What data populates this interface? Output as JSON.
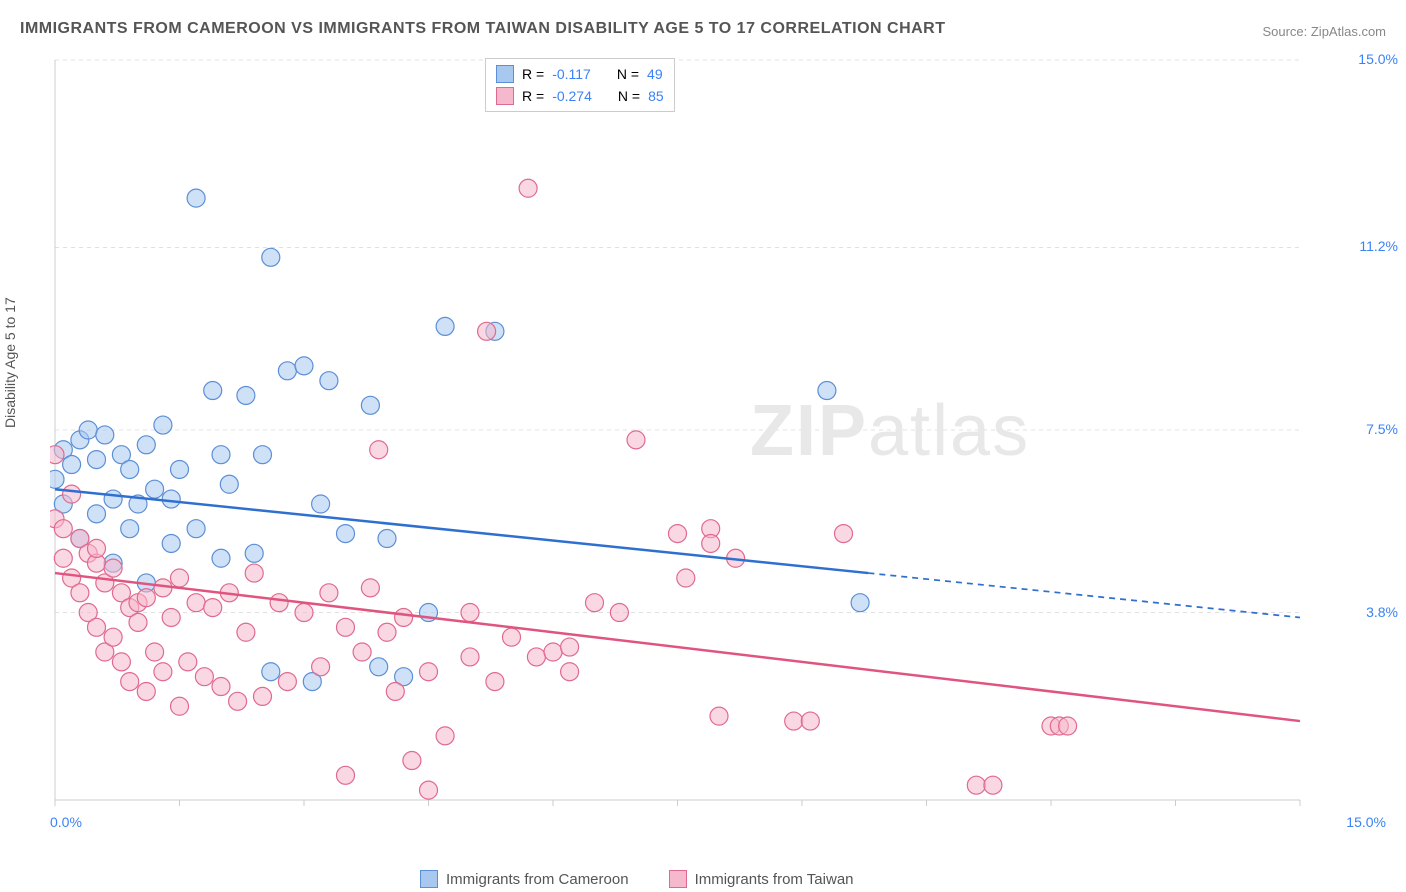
{
  "title": "IMMIGRANTS FROM CAMEROON VS IMMIGRANTS FROM TAIWAN DISABILITY AGE 5 TO 17 CORRELATION CHART",
  "source": "Source: ZipAtlas.com",
  "y_axis_label": "Disability Age 5 to 17",
  "watermark_zip": "ZIP",
  "watermark_atlas": "atlas",
  "chart": {
    "type": "scatter",
    "xlim": [
      0,
      15
    ],
    "ylim": [
      0,
      15
    ],
    "grid_color": "#e0e0e0",
    "axis_color": "#cccccc",
    "background_color": "#ffffff",
    "y_ticks": [
      {
        "value": 15.0,
        "label": "15.0%"
      },
      {
        "value": 11.2,
        "label": "11.2%"
      },
      {
        "value": 7.5,
        "label": "7.5%"
      },
      {
        "value": 3.8,
        "label": "3.8%"
      }
    ],
    "x_tick_positions": [
      0,
      1.5,
      3.0,
      4.5,
      6.0,
      7.5,
      9.0,
      10.5,
      12.0,
      13.5,
      15.0
    ],
    "x_min_label": "0.0%",
    "x_max_label": "15.0%",
    "series": [
      {
        "name": "Immigrants from Cameroon",
        "color_fill": "#a8c8f0",
        "color_stroke": "#5b8fd6",
        "marker_radius": 9,
        "marker_opacity": 0.55,
        "R": "-0.117",
        "N": "49",
        "regression": {
          "x1": 0.0,
          "y1": 6.3,
          "x2_solid": 9.8,
          "y2_solid": 4.6,
          "x2": 15.0,
          "y2": 3.7,
          "color": "#2f6fd0",
          "width": 2.5
        },
        "points": [
          [
            0.0,
            6.5
          ],
          [
            0.1,
            6.0
          ],
          [
            0.1,
            7.1
          ],
          [
            0.2,
            6.8
          ],
          [
            0.3,
            5.3
          ],
          [
            0.3,
            7.3
          ],
          [
            0.4,
            7.5
          ],
          [
            0.5,
            6.9
          ],
          [
            0.5,
            5.8
          ],
          [
            0.6,
            7.4
          ],
          [
            0.7,
            6.1
          ],
          [
            0.7,
            4.8
          ],
          [
            0.8,
            7.0
          ],
          [
            0.9,
            5.5
          ],
          [
            0.9,
            6.7
          ],
          [
            1.0,
            6.0
          ],
          [
            1.1,
            7.2
          ],
          [
            1.1,
            4.4
          ],
          [
            1.2,
            6.3
          ],
          [
            1.3,
            7.6
          ],
          [
            1.4,
            5.2
          ],
          [
            1.4,
            6.1
          ],
          [
            1.5,
            6.7
          ],
          [
            1.7,
            12.2
          ],
          [
            1.7,
            5.5
          ],
          [
            1.9,
            8.3
          ],
          [
            2.0,
            4.9
          ],
          [
            2.0,
            7.0
          ],
          [
            2.1,
            6.4
          ],
          [
            2.3,
            8.2
          ],
          [
            2.4,
            5.0
          ],
          [
            2.5,
            7.0
          ],
          [
            2.6,
            2.6
          ],
          [
            2.6,
            11.0
          ],
          [
            2.8,
            8.7
          ],
          [
            3.0,
            8.8
          ],
          [
            3.1,
            2.4
          ],
          [
            3.2,
            6.0
          ],
          [
            3.3,
            8.5
          ],
          [
            3.5,
            5.4
          ],
          [
            3.8,
            8.0
          ],
          [
            3.9,
            2.7
          ],
          [
            4.0,
            5.3
          ],
          [
            4.2,
            2.5
          ],
          [
            4.5,
            3.8
          ],
          [
            4.7,
            9.6
          ],
          [
            5.3,
            9.5
          ],
          [
            9.3,
            8.3
          ],
          [
            9.7,
            4.0
          ]
        ]
      },
      {
        "name": "Immigrants from Taiwan",
        "color_fill": "#f5b8cc",
        "color_stroke": "#e06a8f",
        "marker_radius": 9,
        "marker_opacity": 0.55,
        "R": "-0.274",
        "N": "85",
        "regression": {
          "x1": 0.0,
          "y1": 4.6,
          "x2_solid": 15.0,
          "y2_solid": 1.6,
          "x2": 15.0,
          "y2": 1.6,
          "color": "#e05580",
          "width": 2.5
        },
        "points": [
          [
            0.0,
            7.0
          ],
          [
            0.0,
            5.7
          ],
          [
            0.1,
            5.5
          ],
          [
            0.1,
            4.9
          ],
          [
            0.2,
            6.2
          ],
          [
            0.2,
            4.5
          ],
          [
            0.3,
            5.3
          ],
          [
            0.3,
            4.2
          ],
          [
            0.4,
            5.0
          ],
          [
            0.4,
            3.8
          ],
          [
            0.5,
            4.8
          ],
          [
            0.5,
            3.5
          ],
          [
            0.5,
            5.1
          ],
          [
            0.6,
            4.4
          ],
          [
            0.6,
            3.0
          ],
          [
            0.7,
            4.7
          ],
          [
            0.7,
            3.3
          ],
          [
            0.8,
            4.2
          ],
          [
            0.8,
            2.8
          ],
          [
            0.9,
            3.9
          ],
          [
            0.9,
            2.4
          ],
          [
            1.0,
            3.6
          ],
          [
            1.0,
            4.0
          ],
          [
            1.1,
            2.2
          ],
          [
            1.1,
            4.1
          ],
          [
            1.2,
            3.0
          ],
          [
            1.3,
            4.3
          ],
          [
            1.3,
            2.6
          ],
          [
            1.4,
            3.7
          ],
          [
            1.5,
            1.9
          ],
          [
            1.5,
            4.5
          ],
          [
            1.6,
            2.8
          ],
          [
            1.7,
            4.0
          ],
          [
            1.8,
            2.5
          ],
          [
            1.9,
            3.9
          ],
          [
            2.0,
            2.3
          ],
          [
            2.1,
            4.2
          ],
          [
            2.2,
            2.0
          ],
          [
            2.3,
            3.4
          ],
          [
            2.4,
            4.6
          ],
          [
            2.5,
            2.1
          ],
          [
            2.7,
            4.0
          ],
          [
            2.8,
            2.4
          ],
          [
            3.0,
            3.8
          ],
          [
            3.2,
            2.7
          ],
          [
            3.3,
            4.2
          ],
          [
            3.5,
            3.5
          ],
          [
            3.5,
            0.5
          ],
          [
            3.7,
            3.0
          ],
          [
            3.8,
            4.3
          ],
          [
            3.9,
            7.1
          ],
          [
            4.0,
            3.4
          ],
          [
            4.1,
            2.2
          ],
          [
            4.2,
            3.7
          ],
          [
            4.3,
            0.8
          ],
          [
            4.5,
            2.6
          ],
          [
            4.5,
            0.2
          ],
          [
            4.7,
            1.3
          ],
          [
            5.0,
            2.9
          ],
          [
            5.0,
            3.8
          ],
          [
            5.2,
            9.5
          ],
          [
            5.3,
            2.4
          ],
          [
            5.5,
            3.3
          ],
          [
            5.7,
            12.4
          ],
          [
            5.8,
            2.9
          ],
          [
            6.0,
            3.0
          ],
          [
            6.2,
            3.1
          ],
          [
            6.2,
            2.6
          ],
          [
            6.5,
            4.0
          ],
          [
            6.8,
            3.8
          ],
          [
            7.0,
            7.3
          ],
          [
            7.5,
            5.4
          ],
          [
            7.6,
            4.5
          ],
          [
            7.9,
            5.5
          ],
          [
            7.9,
            5.2
          ],
          [
            8.0,
            1.7
          ],
          [
            8.2,
            4.9
          ],
          [
            8.9,
            1.6
          ],
          [
            9.1,
            1.6
          ],
          [
            9.5,
            5.4
          ],
          [
            11.1,
            0.3
          ],
          [
            11.3,
            0.3
          ],
          [
            12.0,
            1.5
          ],
          [
            12.1,
            1.5
          ],
          [
            12.2,
            1.5
          ]
        ]
      }
    ]
  },
  "legend_stats_label_R": "R =",
  "legend_stats_label_N": "N ="
}
